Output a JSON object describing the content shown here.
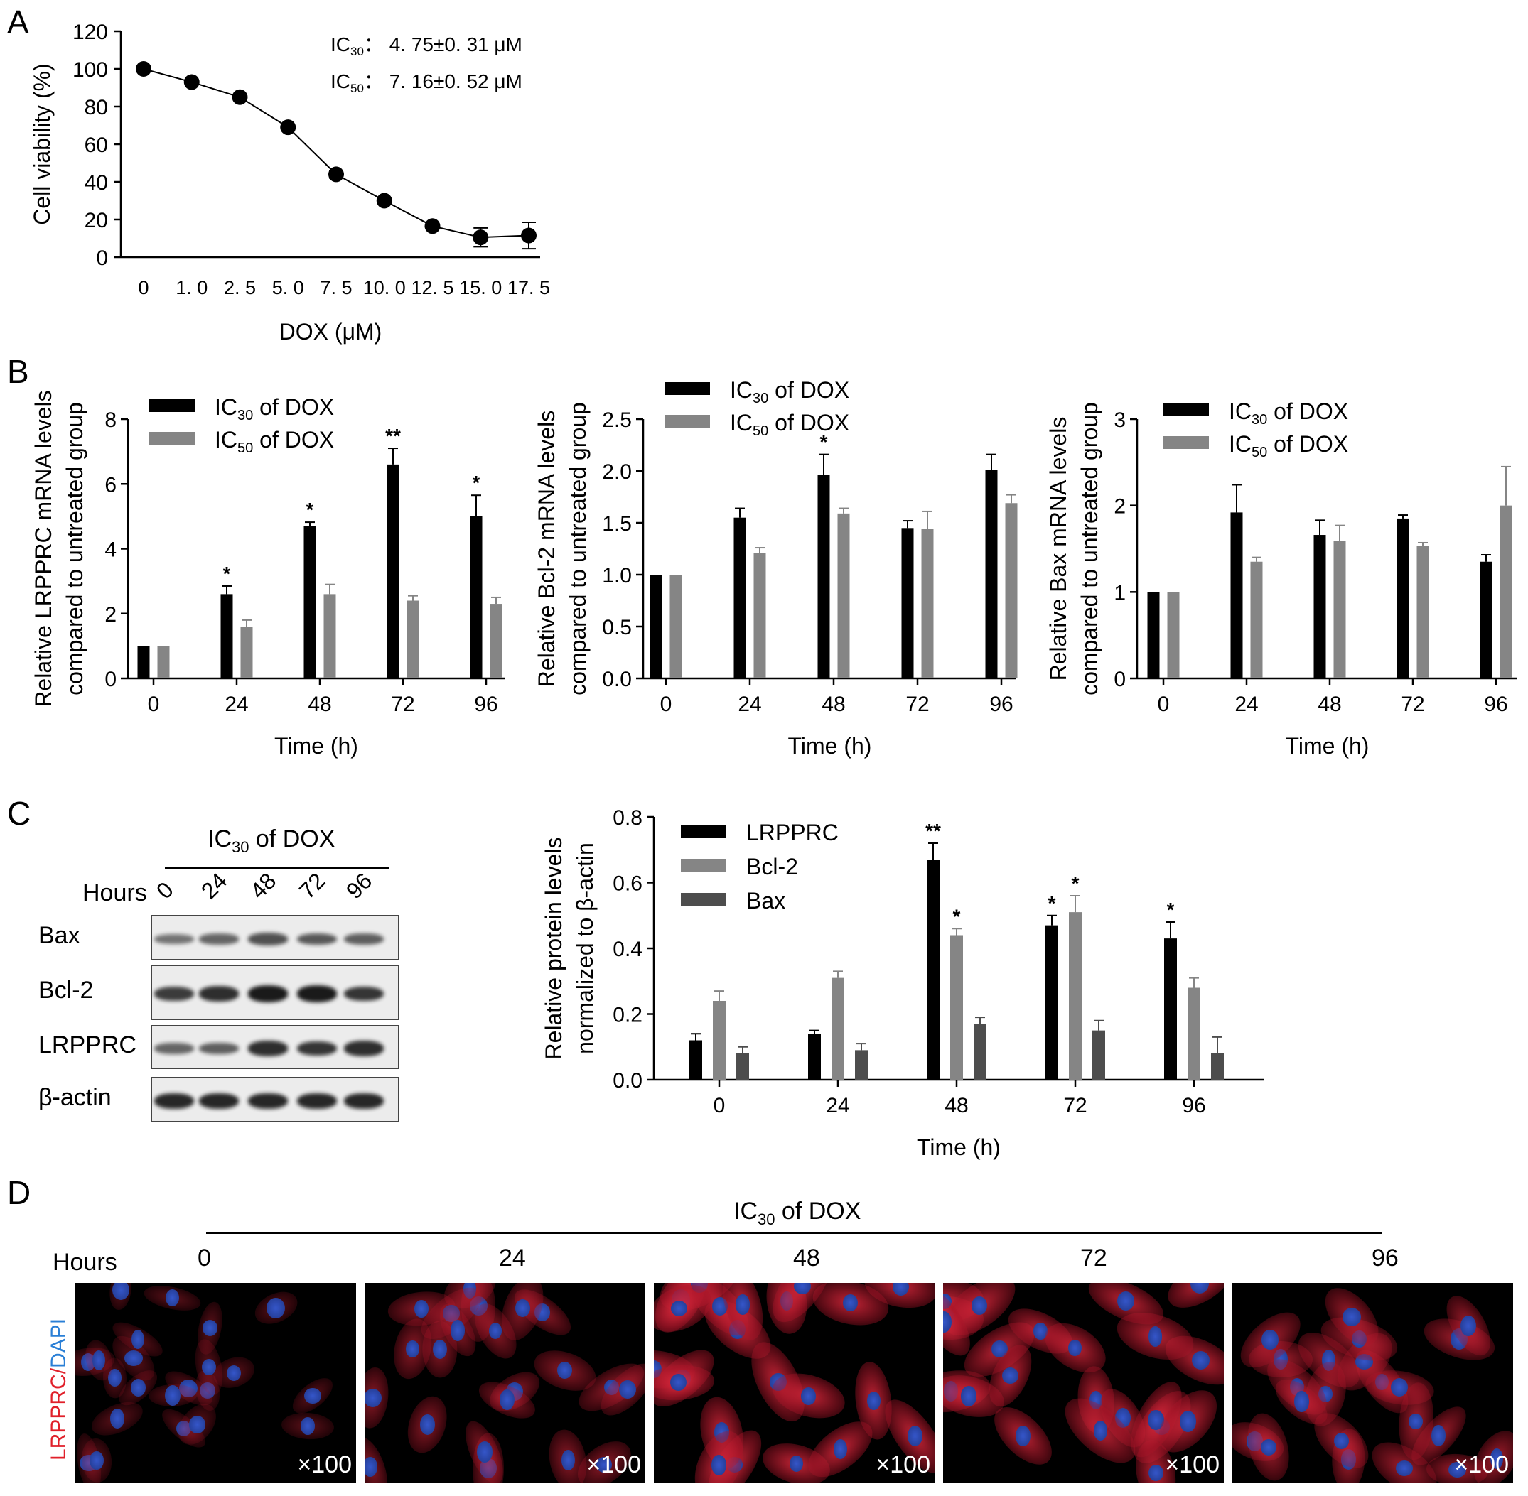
{
  "panels": {
    "a": "A",
    "b": "B",
    "c": "C",
    "d": "D"
  },
  "panel_a_annotations": {
    "ic30": {
      "ic": "IC",
      "sub": "30",
      "value": "： 4. 75±0. 31 μM"
    },
    "ic50": {
      "ic": "IC",
      "sub": "50",
      "value": "： 7. 16±0. 52 μM"
    }
  },
  "chart_data": [
    {
      "id": "A",
      "type": "line",
      "xlabel": "DOX (μM)",
      "ylabel": "Cell viability (%)",
      "ylim": [
        0,
        120
      ],
      "yticks": [
        0,
        20,
        40,
        60,
        80,
        100,
        120
      ],
      "categories": [
        "0",
        "1. 0",
        "2. 5",
        "5. 0",
        "7. 5",
        "10. 0",
        "12. 5",
        "15. 0",
        "17. 5"
      ],
      "values": [
        100,
        93,
        85,
        69,
        44,
        30,
        16.5,
        10.5,
        11.5
      ],
      "errors": [
        0,
        0,
        0,
        0,
        2,
        0,
        0,
        5,
        7
      ]
    },
    {
      "id": "B1",
      "type": "bar",
      "xlabel": "Time (h)",
      "ylabel_lines": [
        "Relative LRPPRC mRNA levels",
        "compared to untreated group"
      ],
      "ylim": [
        0,
        8
      ],
      "yticks": [
        0,
        2,
        4,
        6,
        8
      ],
      "categories": [
        "0",
        "24",
        "48",
        "72",
        "96"
      ],
      "series": [
        {
          "name_main": "IC",
          "name_sub": "30",
          "name_rest": " of DOX",
          "color": "#000000",
          "values": [
            1.0,
            2.6,
            4.7,
            6.6,
            5.0
          ],
          "errors": [
            0,
            0.25,
            0.12,
            0.5,
            0.65
          ],
          "sig": [
            "",
            "*",
            "*",
            "**",
            "*"
          ]
        },
        {
          "name_main": "IC",
          "name_sub": "50",
          "name_rest": " of DOX",
          "color": "#858585",
          "values": [
            1.0,
            1.6,
            2.6,
            2.4,
            2.3
          ],
          "errors": [
            0,
            0.2,
            0.3,
            0.15,
            0.2
          ],
          "sig": [
            "",
            "",
            "",
            "",
            ""
          ]
        }
      ]
    },
    {
      "id": "B2",
      "type": "bar",
      "xlabel": "Time (h)",
      "ylabel_lines": [
        "Relative Bcl-2 mRNA levels",
        "compared to untreated group"
      ],
      "ylim": [
        0,
        2.5
      ],
      "yticks": [
        0.0,
        0.5,
        1.0,
        1.5,
        2.0,
        2.5
      ],
      "ytick_labels": [
        "0.0",
        "0.5",
        "1.0",
        "1.5",
        "2.0",
        "2.5"
      ],
      "categories": [
        "0",
        "24",
        "48",
        "72",
        "96"
      ],
      "series": [
        {
          "name_main": "IC",
          "name_sub": "30",
          "name_rest": " of DOX",
          "color": "#000000",
          "values": [
            1.0,
            1.55,
            1.96,
            1.45,
            2.01
          ],
          "errors": [
            0,
            0.09,
            0.2,
            0.07,
            0.15
          ],
          "sig": [
            "",
            "",
            "*",
            "",
            ""
          ]
        },
        {
          "name_main": "IC",
          "name_sub": "50",
          "name_rest": " of DOX",
          "color": "#858585",
          "values": [
            1.0,
            1.21,
            1.59,
            1.44,
            1.69
          ],
          "errors": [
            0,
            0.05,
            0.05,
            0.17,
            0.08
          ],
          "sig": [
            "",
            "",
            "",
            "",
            ""
          ]
        }
      ]
    },
    {
      "id": "B3",
      "type": "bar",
      "xlabel": "Time (h)",
      "ylabel_lines": [
        "Relative Bax mRNA levels",
        "compared to untreated group"
      ],
      "ylim": [
        0,
        3
      ],
      "yticks": [
        0,
        1,
        2,
        3
      ],
      "categories": [
        "0",
        "24",
        "48",
        "72",
        "96"
      ],
      "series": [
        {
          "name_main": "IC",
          "name_sub": "30",
          "name_rest": " of DOX",
          "color": "#000000",
          "values": [
            1.0,
            1.92,
            1.66,
            1.85,
            1.35
          ],
          "errors": [
            0,
            0.32,
            0.17,
            0.04,
            0.08
          ],
          "sig": [
            "",
            "",
            "",
            "",
            ""
          ]
        },
        {
          "name_main": "IC",
          "name_sub": "50",
          "name_rest": " of DOX",
          "color": "#858585",
          "values": [
            1.0,
            1.35,
            1.59,
            1.53,
            2.0
          ],
          "errors": [
            0,
            0.05,
            0.18,
            0.04,
            0.45
          ],
          "sig": [
            "",
            "",
            "",
            "",
            ""
          ]
        }
      ]
    },
    {
      "id": "C",
      "type": "bar",
      "xlabel": "Time (h)",
      "ylabel_lines": [
        "Relative protein levels",
        "normalized to β-actin"
      ],
      "ylim": [
        0,
        0.8
      ],
      "yticks": [
        0.0,
        0.2,
        0.4,
        0.6,
        0.8
      ],
      "ytick_labels": [
        "0.0",
        "0.2",
        "0.4",
        "0.6",
        "0.8"
      ],
      "categories": [
        "0",
        "24",
        "48",
        "72",
        "96"
      ],
      "series": [
        {
          "name": "LRPPRC",
          "color": "#000000",
          "values": [
            0.12,
            0.14,
            0.67,
            0.47,
            0.43
          ],
          "errors": [
            0.02,
            0.01,
            0.05,
            0.03,
            0.05
          ],
          "sig": [
            "",
            "",
            "**",
            "*",
            "*"
          ]
        },
        {
          "name": "Bcl-2",
          "color": "#858585",
          "values": [
            0.24,
            0.31,
            0.44,
            0.51,
            0.28
          ],
          "errors": [
            0.03,
            0.02,
            0.02,
            0.05,
            0.03
          ],
          "sig": [
            "",
            "",
            "*",
            "*",
            ""
          ]
        },
        {
          "name": "Bax",
          "color": "#4d4d4d",
          "values": [
            0.08,
            0.09,
            0.17,
            0.15,
            0.08
          ],
          "errors": [
            0.02,
            0.02,
            0.02,
            0.03,
            0.05
          ],
          "sig": [
            "",
            "",
            "",
            "",
            ""
          ]
        }
      ]
    }
  ],
  "blot": {
    "treatment": {
      "ic": "IC",
      "sub": "30",
      "rest": " of DOX"
    },
    "hours_label": "Hours",
    "lanes": [
      "0",
      "24",
      "48",
      "72",
      "96"
    ],
    "rows": [
      {
        "label": "Bax",
        "intensity": [
          0.35,
          0.45,
          0.6,
          0.55,
          0.5
        ]
      },
      {
        "label": "Bcl-2",
        "intensity": [
          0.75,
          0.85,
          1.0,
          1.0,
          0.8
        ]
      },
      {
        "label": "LRPPRC",
        "intensity": [
          0.45,
          0.5,
          0.85,
          0.8,
          0.85
        ]
      },
      {
        "label": "β-actin",
        "intensity": [
          0.9,
          0.9,
          0.9,
          0.9,
          0.9
        ]
      }
    ]
  },
  "panel_d": {
    "treatment": {
      "ic": "IC",
      "sub": "30",
      "rest": " of DOX"
    },
    "hours_label": "Hours",
    "hours": [
      "0",
      "24",
      "48",
      "72",
      "96"
    ],
    "stain_red": "LRPPRC",
    "stain_sep": "/",
    "stain_blue": "DAPI",
    "magnification": "×100",
    "red_intensity": [
      0.25,
      0.55,
      0.9,
      0.85,
      0.7
    ]
  }
}
